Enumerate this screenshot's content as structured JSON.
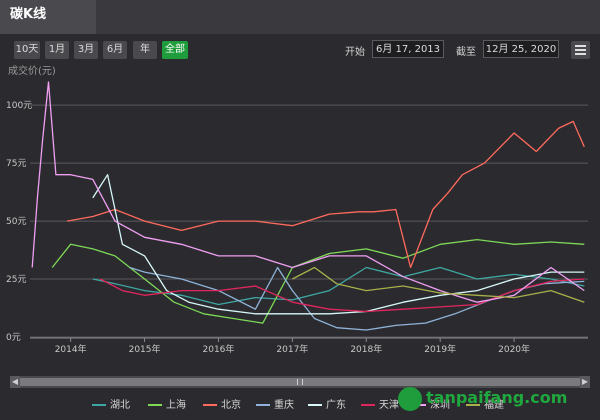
{
  "header": {
    "title": "碳K线"
  },
  "range_buttons": [
    "10天",
    "1月",
    "3月",
    "6月",
    "年",
    "全部"
  ],
  "active_range": "全部",
  "date_range": {
    "start_label": "开始",
    "start": "6月 17, 2013",
    "end_label": "截至",
    "end": "12月 25, 2020"
  },
  "colors": {
    "background": "#2b2b2f",
    "grid": "#5a5a5e",
    "accent": "#1f9d3c"
  },
  "watermark": {
    "text": "tanpaifang.com"
  },
  "chart_data": {
    "type": "line",
    "ylabel": "成交价(元)",
    "y_ticks": [
      "0元",
      "25元",
      "50元",
      "75元",
      "100元"
    ],
    "ylim": [
      0,
      110
    ],
    "x_ticks": [
      "2014年",
      "2015年",
      "2016年",
      "2017年",
      "2018年",
      "2019年",
      "2020年"
    ],
    "xlim": [
      2013.45,
      2021.0
    ],
    "grid": true,
    "legend_position": "bottom",
    "series": [
      {
        "name": "湖北",
        "color": "#3fa7a3",
        "x": [
          2014.3,
          2014.6,
          2015.0,
          2015.5,
          2016.0,
          2016.5,
          2017.0,
          2017.5,
          2018.0,
          2018.5,
          2019.0,
          2019.5,
          2020.0,
          2020.5,
          2020.95
        ],
        "y": [
          25,
          23,
          20,
          18,
          14,
          17,
          16,
          20,
          30,
          26,
          30,
          25,
          27,
          25,
          22
        ]
      },
      {
        "name": "上海",
        "color": "#7ed957",
        "x": [
          2013.75,
          2014.0,
          2014.3,
          2014.6,
          2015.0,
          2015.4,
          2015.8,
          2016.2,
          2016.6,
          2017.0,
          2017.5,
          2018.0,
          2018.5,
          2019.0,
          2019.5,
          2020.0,
          2020.5,
          2020.95
        ],
        "y": [
          30,
          40,
          38,
          35,
          25,
          15,
          10,
          8,
          6,
          30,
          36,
          38,
          34,
          40,
          42,
          40,
          41,
          40
        ]
      },
      {
        "name": "北京",
        "color": "#ff6a5c",
        "x": [
          2013.95,
          2014.3,
          2014.6,
          2015.0,
          2015.5,
          2016.0,
          2016.5,
          2017.0,
          2017.5,
          2017.9,
          2018.1,
          2018.4,
          2018.6,
          2018.9,
          2019.1,
          2019.3,
          2019.6,
          2020.0,
          2020.3,
          2020.6,
          2020.8,
          2020.95
        ],
        "y": [
          50,
          52,
          55,
          50,
          46,
          50,
          50,
          48,
          53,
          54,
          54,
          55,
          30,
          55,
          62,
          70,
          75,
          88,
          80,
          90,
          93,
          82
        ]
      },
      {
        "name": "重庆",
        "color": "#8fb3d9",
        "x": [
          2014.8,
          2015.0,
          2015.5,
          2016.0,
          2016.5,
          2016.8,
          2017.0,
          2017.3,
          2017.6,
          2018.0,
          2018.4,
          2018.8,
          2019.2,
          2019.6,
          2020.0,
          2020.4,
          2020.95
        ],
        "y": [
          30,
          28,
          25,
          20,
          12,
          30,
          20,
          8,
          4,
          3,
          5,
          6,
          10,
          15,
          20,
          23,
          24
        ]
      },
      {
        "name": "广东",
        "color": "#d7f7f9",
        "x": [
          2014.3,
          2014.5,
          2014.7,
          2015.0,
          2015.3,
          2015.6,
          2016.0,
          2016.5,
          2017.0,
          2017.5,
          2018.0,
          2018.5,
          2019.0,
          2019.5,
          2020.0,
          2020.5,
          2020.95
        ],
        "y": [
          60,
          70,
          40,
          35,
          20,
          15,
          12,
          10,
          10,
          10,
          11,
          15,
          18,
          20,
          25,
          28,
          28
        ]
      },
      {
        "name": "天津",
        "color": "#e2255e",
        "x": [
          2014.4,
          2014.7,
          2015.0,
          2015.5,
          2016.0,
          2016.5,
          2017.0,
          2017.5,
          2018.0,
          2018.5,
          2019.0,
          2019.5,
          2020.0,
          2020.5,
          2020.95
        ],
        "y": [
          25,
          20,
          18,
          20,
          20,
          22,
          15,
          12,
          11,
          12,
          13,
          14,
          20,
          24,
          25
        ]
      },
      {
        "name": "深圳",
        "color": "#f09ff3",
        "x": [
          2013.48,
          2013.55,
          2013.62,
          2013.7,
          2013.8,
          2014.0,
          2014.3,
          2014.6,
          2015.0,
          2015.5,
          2016.0,
          2016.5,
          2017.0,
          2017.5,
          2018.0,
          2018.5,
          2019.0,
          2019.5,
          2020.0,
          2020.5,
          2020.95
        ],
        "y": [
          30,
          60,
          85,
          110,
          70,
          70,
          68,
          50,
          43,
          40,
          35,
          35,
          30,
          35,
          35,
          26,
          20,
          15,
          18,
          30,
          20
        ]
      },
      {
        "name": "福建",
        "color": "#a8b04a",
        "x": [
          2017.0,
          2017.3,
          2017.6,
          2018.0,
          2018.5,
          2019.0,
          2019.5,
          2020.0,
          2020.5,
          2020.95
        ],
        "y": [
          25,
          30,
          23,
          20,
          22,
          19,
          18,
          17,
          20,
          15
        ]
      }
    ]
  }
}
